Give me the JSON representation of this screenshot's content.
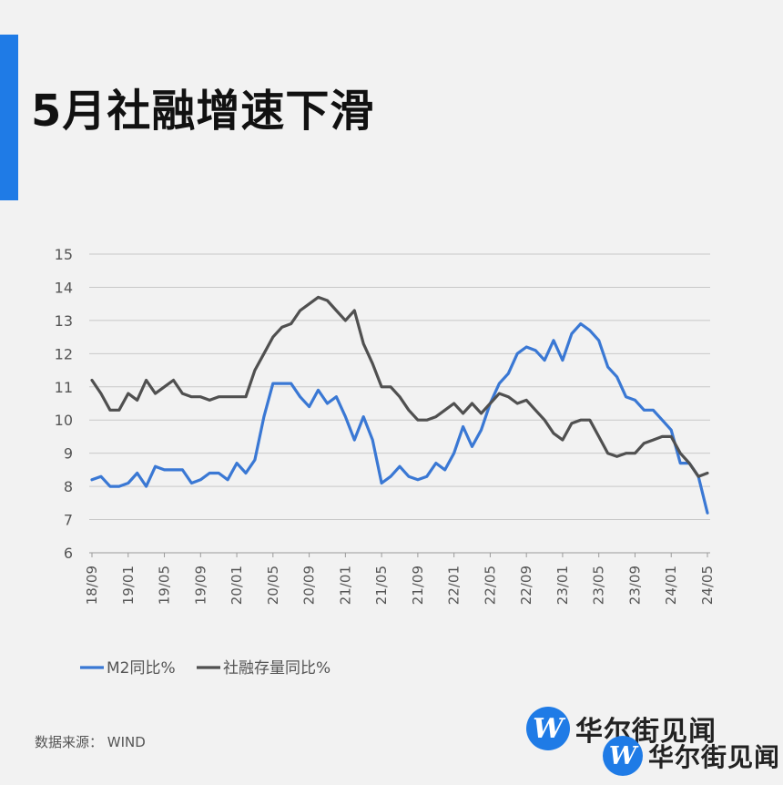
{
  "title": "5月社融增速下滑",
  "source": "数据来源： WIND",
  "logo": {
    "symbol": "W",
    "text": "华尔街见闻"
  },
  "colors": {
    "accent": "#1f7be6",
    "m2": "#3a78d4",
    "tsf": "#505050",
    "grid": "#c8c8c8"
  },
  "chart_data": {
    "type": "line",
    "x_labels": [
      "18/09",
      "19/01",
      "19/05",
      "19/09",
      "20/01",
      "20/05",
      "20/09",
      "21/01",
      "21/05",
      "21/09",
      "22/01",
      "22/05",
      "22/09",
      "23/01",
      "23/05",
      "23/09",
      "24/01",
      "24/05"
    ],
    "ylim": [
      6,
      15
    ],
    "yticks": [
      6,
      7,
      8,
      9,
      10,
      11,
      12,
      13,
      14,
      15
    ],
    "grid": true,
    "legend_position": "bottom-left",
    "series": [
      {
        "name": "M2同比%",
        "color": "#3a78d4",
        "values": [
          8.2,
          8.3,
          8.0,
          8.0,
          8.1,
          8.4,
          8.0,
          8.6,
          8.5,
          8.5,
          8.5,
          8.1,
          8.2,
          8.4,
          8.4,
          8.2,
          8.7,
          8.4,
          8.8,
          10.1,
          11.1,
          11.1,
          11.1,
          10.7,
          10.4,
          10.9,
          10.5,
          10.7,
          10.1,
          9.4,
          10.1,
          9.4,
          8.1,
          8.3,
          8.6,
          8.3,
          8.2,
          8.3,
          8.7,
          8.5,
          9.0,
          9.8,
          9.2,
          9.7,
          10.5,
          11.1,
          11.4,
          12.0,
          12.2,
          12.1,
          11.8,
          12.4,
          11.8,
          12.6,
          12.9,
          12.7,
          12.4,
          11.6,
          11.3,
          10.7,
          10.6,
          10.3,
          10.3,
          10.0,
          9.7,
          8.7,
          8.7,
          8.3,
          7.2
        ]
      },
      {
        "name": "社融存量同比%",
        "color": "#505050",
        "values": [
          11.2,
          10.8,
          10.3,
          10.3,
          10.8,
          10.6,
          11.2,
          10.8,
          11.0,
          11.2,
          10.8,
          10.7,
          10.7,
          10.6,
          10.7,
          10.7,
          10.7,
          10.7,
          11.5,
          12.0,
          12.5,
          12.8,
          12.9,
          13.3,
          13.5,
          13.7,
          13.6,
          13.3,
          13.0,
          13.3,
          12.3,
          11.7,
          11.0,
          11.0,
          10.7,
          10.3,
          10.0,
          10.0,
          10.1,
          10.3,
          10.5,
          10.2,
          10.5,
          10.2,
          10.5,
          10.8,
          10.7,
          10.5,
          10.6,
          10.3,
          10.0,
          9.6,
          9.4,
          9.9,
          10.0,
          10.0,
          9.5,
          9.0,
          8.9,
          9.0,
          9.0,
          9.3,
          9.4,
          9.5,
          9.5,
          9.0,
          8.7,
          8.3,
          8.4
        ]
      }
    ]
  }
}
